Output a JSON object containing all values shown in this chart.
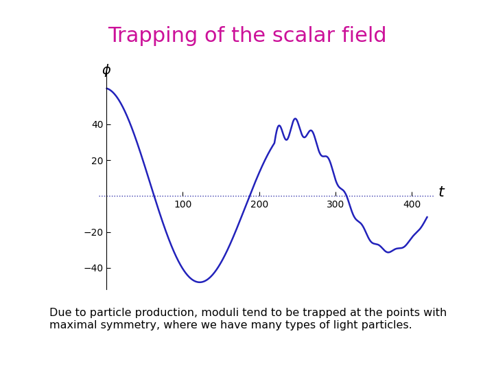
{
  "title": "Trapping of the scalar field",
  "title_color": "#CC1199",
  "title_fontsize": 22,
  "background_color": "#ffffff",
  "line_color": "#2222BB",
  "line_width": 1.8,
  "xlabel": "t",
  "ylabel": "ϕ",
  "x_ticks": [
    100,
    200,
    300,
    400
  ],
  "y_ticks": [
    -40,
    -20,
    20,
    40
  ],
  "xlim": [
    -10,
    430
  ],
  "ylim": [
    -52,
    72
  ],
  "caption": "Due to particle production, moduli tend to be trapped at the points with\nmaximal symmetry, where we have many types of light particles.",
  "caption_fontsize": 11.5,
  "tick_fontsize": 10
}
